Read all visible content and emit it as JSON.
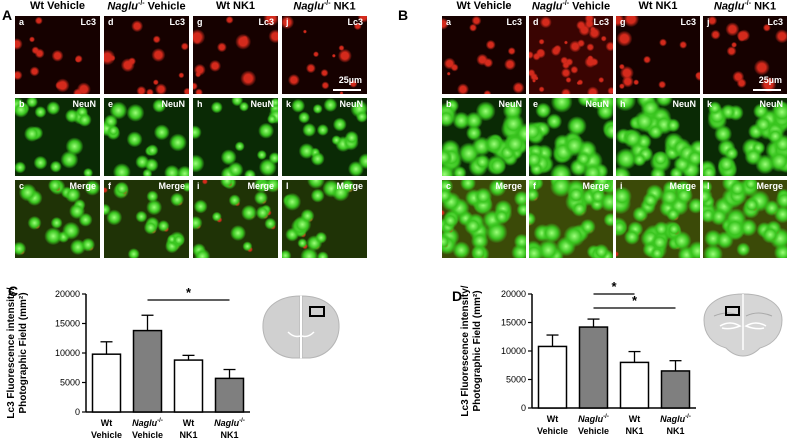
{
  "panels": {
    "A": {
      "letter": "A",
      "columns": [
        {
          "prefix": "Wt",
          "suffix": " Vehicle"
        },
        {
          "prefix": "Naglu",
          "sup": "-/-",
          "suffix": " Vehicle",
          "italic": true
        },
        {
          "prefix": "Wt",
          "suffix": " NK1"
        },
        {
          "prefix": "Naglu",
          "sup": "-/-",
          "suffix": " NK1",
          "italic": true
        }
      ],
      "rows": [
        {
          "label": "Lc3",
          "subs": [
            "a",
            "d",
            "g",
            "j"
          ]
        },
        {
          "label": "NeuN",
          "subs": [
            "b",
            "e",
            "h",
            "k"
          ]
        },
        {
          "label": "Merge",
          "subs": [
            "c",
            "f",
            "i",
            "l"
          ]
        }
      ],
      "scale_label": "25µm"
    },
    "B": {
      "letter": "B",
      "columns": [
        {
          "prefix": "Wt",
          "suffix": " Vehicle"
        },
        {
          "prefix": "Naglu",
          "sup": "-/-",
          "suffix": " Vehicle",
          "italic": true
        },
        {
          "prefix": "Wt",
          "suffix": " NK1"
        },
        {
          "prefix": "Naglu",
          "sup": "-/-",
          "suffix": " NK1",
          "italic": true
        }
      ],
      "rows": [
        {
          "label": "Lc3",
          "subs": [
            "a",
            "d",
            "g",
            "j"
          ]
        },
        {
          "label": "NeuN",
          "subs": [
            "b",
            "e",
            "h",
            "k"
          ]
        },
        {
          "label": "Merge",
          "subs": [
            "c",
            "f",
            "i",
            "l"
          ]
        }
      ],
      "scale_label": "25µm"
    },
    "C": {
      "letter": "C"
    },
    "D": {
      "letter": "D"
    }
  },
  "colors": {
    "lc3_red": "#d42a1c",
    "neun_green": "#39c51f",
    "bar_white": "#ffffff",
    "bar_gray": "#7f7f7f",
    "brain_gray": "#d0d0d0"
  },
  "chart_data": [
    {
      "panel": "C",
      "type": "bar",
      "ylabel": "Lc3 Fluorescence intensity/ Photographic Field (mm²)",
      "ylim": [
        0,
        20000
      ],
      "yticks": [
        "0",
        "5000",
        "10000",
        "15000",
        "20000"
      ],
      "categories": [
        {
          "line1": "Wt",
          "line2": "Vehicle",
          "italic": false,
          "sup": ""
        },
        {
          "line1": "Naglu",
          "sup": "-/-",
          "line2": "Vehicle",
          "italic": true
        },
        {
          "line1": "Wt",
          "line2": "NK1",
          "italic": false,
          "sup": ""
        },
        {
          "line1": "Naglu",
          "sup": "-/-",
          "line2": "NK1",
          "italic": true
        }
      ],
      "values": [
        9800,
        13800,
        8800,
        5700
      ],
      "errors": [
        2100,
        2600,
        800,
        1500
      ],
      "bar_colors": [
        "white",
        "gray",
        "white",
        "gray"
      ],
      "significance": [
        {
          "from": 1,
          "to": 3,
          "label": "*"
        }
      ]
    },
    {
      "panel": "D",
      "type": "bar",
      "ylabel": "Lc3 Fluorescence intensity/ Photographic Field (mm²)",
      "ylim": [
        0,
        20000
      ],
      "yticks": [
        "0",
        "5000",
        "10000",
        "15000",
        "20000"
      ],
      "categories": [
        {
          "line1": "Wt",
          "line2": "Vehicle",
          "italic": false,
          "sup": ""
        },
        {
          "line1": "Naglu",
          "sup": "-/-",
          "line2": "Vehicle",
          "italic": true
        },
        {
          "line1": "Wt",
          "line2": "NK1",
          "italic": false,
          "sup": ""
        },
        {
          "line1": "Naglu",
          "sup": "-/-",
          "line2": "NK1",
          "italic": true
        }
      ],
      "values": [
        10800,
        14200,
        8000,
        6500
      ],
      "errors": [
        2000,
        1400,
        1900,
        1800
      ],
      "bar_colors": [
        "white",
        "gray",
        "white",
        "gray"
      ],
      "significance": [
        {
          "from": 1,
          "to": 2,
          "label": "*"
        },
        {
          "from": 1,
          "to": 3,
          "label": "*"
        }
      ]
    }
  ]
}
